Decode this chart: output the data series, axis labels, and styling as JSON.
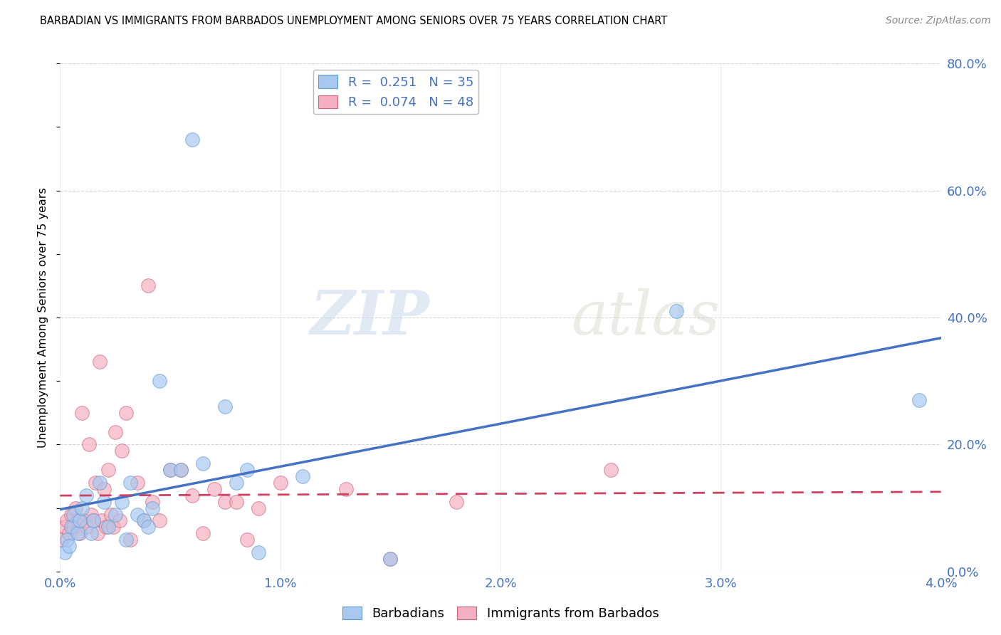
{
  "title": "BARBADIAN VS IMMIGRANTS FROM BARBADOS UNEMPLOYMENT AMONG SENIORS OVER 75 YEARS CORRELATION CHART",
  "source": "Source: ZipAtlas.com",
  "ylabel": "Unemployment Among Seniors over 75 years",
  "xlim": [
    0.0,
    4.0
  ],
  "ylim": [
    0.0,
    80.0
  ],
  "x_ticks": [
    0.0,
    1.0,
    2.0,
    3.0,
    4.0
  ],
  "x_tick_labels": [
    "0.0%",
    "1.0%",
    "2.0%",
    "3.0%",
    "4.0%"
  ],
  "y_ticks_right": [
    0.0,
    20.0,
    40.0,
    60.0,
    80.0
  ],
  "y_tick_labels_right": [
    "0.0%",
    "20.0%",
    "40.0%",
    "60.0%",
    "80.0%"
  ],
  "series_barbadian": {
    "label": "Barbadians",
    "color": "#a8c8f0",
    "edge_color": "#5b9bd5",
    "R": 0.251,
    "N": 35,
    "x": [
      0.02,
      0.03,
      0.04,
      0.05,
      0.06,
      0.08,
      0.09,
      0.1,
      0.12,
      0.14,
      0.15,
      0.18,
      0.2,
      0.22,
      0.25,
      0.28,
      0.3,
      0.32,
      0.35,
      0.38,
      0.4,
      0.42,
      0.45,
      0.5,
      0.55,
      0.6,
      0.65,
      0.75,
      0.8,
      0.85,
      0.9,
      1.1,
      1.5,
      2.8,
      3.9
    ],
    "y": [
      3.0,
      5.0,
      4.0,
      7.0,
      9.0,
      6.0,
      8.0,
      10.0,
      12.0,
      6.0,
      8.0,
      14.0,
      11.0,
      7.0,
      9.0,
      11.0,
      5.0,
      14.0,
      9.0,
      8.0,
      7.0,
      10.0,
      30.0,
      16.0,
      16.0,
      68.0,
      17.0,
      26.0,
      14.0,
      16.0,
      3.0,
      15.0,
      2.0,
      41.0,
      27.0
    ]
  },
  "series_immigrants": {
    "label": "Immigrants from Barbados",
    "color": "#f4b0c0",
    "edge_color": "#d0607a",
    "R": 0.074,
    "N": 48,
    "x": [
      0.01,
      0.02,
      0.03,
      0.04,
      0.05,
      0.06,
      0.07,
      0.08,
      0.09,
      0.1,
      0.11,
      0.12,
      0.13,
      0.14,
      0.15,
      0.16,
      0.17,
      0.18,
      0.19,
      0.2,
      0.21,
      0.22,
      0.23,
      0.24,
      0.25,
      0.27,
      0.28,
      0.3,
      0.32,
      0.35,
      0.38,
      0.4,
      0.42,
      0.45,
      0.5,
      0.55,
      0.6,
      0.65,
      0.7,
      0.75,
      0.8,
      0.85,
      0.9,
      1.0,
      1.3,
      1.5,
      1.8,
      2.5
    ],
    "y": [
      5.0,
      7.0,
      8.0,
      6.0,
      9.0,
      7.0,
      10.0,
      8.0,
      6.0,
      25.0,
      8.0,
      7.0,
      20.0,
      9.0,
      8.0,
      14.0,
      6.0,
      33.0,
      8.0,
      13.0,
      7.0,
      16.0,
      9.0,
      7.0,
      22.0,
      8.0,
      19.0,
      25.0,
      5.0,
      14.0,
      8.0,
      45.0,
      11.0,
      8.0,
      16.0,
      16.0,
      12.0,
      6.0,
      13.0,
      11.0,
      11.0,
      5.0,
      10.0,
      14.0,
      13.0,
      2.0,
      11.0,
      16.0
    ]
  },
  "trend_barbadian_color": "#4472c4",
  "trend_immigrants_color": "#d04060",
  "watermark_zip": "ZIP",
  "watermark_atlas": "atlas",
  "background_color": "#ffffff",
  "grid_color": "#cccccc"
}
